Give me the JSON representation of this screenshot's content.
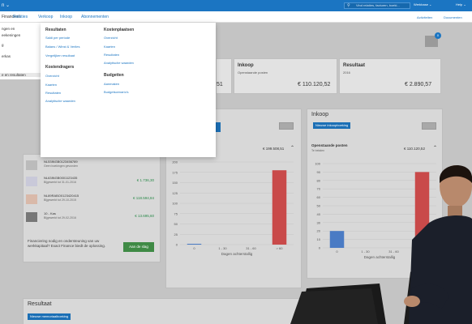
{
  "topbar": {
    "brand": "n ⌄",
    "search_placeholder": "Vind relaties, facturen, boeki...",
    "user": "Werkbase ⌄",
    "help": "Help ⌄"
  },
  "menubar": {
    "items": [
      "Financieel",
      "Relaties",
      "Verkoop",
      "Inkoop",
      "Abonnementen"
    ],
    "right": [
      "Activiteiten",
      "Documenten"
    ]
  },
  "leftmenu": {
    "items": [
      "ngen en",
      "eekeningen",
      "g",
      "erkas",
      "e en resultaten"
    ]
  },
  "dropdown": {
    "col1": {
      "heading1": "Resultaten",
      "links1": [
        "Saldi per periode",
        "Balans / Winst & Verlies",
        "Vergelijken resultaat"
      ],
      "heading2": "Kostendragers",
      "links2": [
        "Overzicht",
        "Kaarten",
        "Resultaten",
        "Analytische waarden"
      ]
    },
    "col2": {
      "heading1": "Kostenplaatsen",
      "links1": [
        "Overzicht",
        "Kaarten",
        "Resultaten",
        "Analytische waarden"
      ],
      "heading2": "Budgetten",
      "links2": [
        "Aanmaken",
        "Budgetscenario's"
      ]
    }
  },
  "notifications": {
    "count": "0"
  },
  "summary": {
    "mid_value": "51",
    "inkoop": {
      "title": "Inkoop",
      "subtitle": "Openstaande posten",
      "amount": "€ 110.120,52"
    },
    "resultaat": {
      "title": "Resultaat",
      "subtitle": "2016",
      "amount": "€ 2.890,57"
    }
  },
  "bank_panel": {
    "accounts": [
      {
        "name": "NL53INGB0123456789",
        "sub": "Geen boekingen gevonden",
        "value": ""
      },
      {
        "name": "NL63INGB0001123435",
        "sub": "Bijgewerkt tot 31-01-2016",
        "value": "€ 1.736,30"
      },
      {
        "name": "NL89RABO0123420415",
        "sub": "Bijgewerkt tot 29-10-2015",
        "value": "€ 118.594,84"
      },
      {
        "name": "10 - Kas",
        "sub": "Bijgewerkt tot 29-02-2016",
        "value": "€ 13.695,60"
      }
    ],
    "financing_text": "Financiering nodig en ondersteuning van uw werkkapitaal? Exact Finance biedt de oplossing.",
    "financing_button": "Aan de slag"
  },
  "mid_panel": {
    "value": "€ 199.508,51",
    "y_ticks": [
      "200",
      "175",
      "150",
      "125",
      "100",
      "75",
      "50",
      "25",
      "0"
    ],
    "x_ticks": [
      "0",
      "1 - 30",
      "31 - 60",
      "> 60"
    ],
    "x_label": "Dagen achterstallig"
  },
  "inkoop_panel": {
    "title": "Inkoop",
    "new_button": "Nieuwe inkoopboeking",
    "section_title": "Openstaande posten",
    "section_sub": "Te betalen",
    "value": "€ 110.120,52",
    "y_ticks": [
      "100",
      "90",
      "80",
      "70",
      "60",
      "50",
      "40",
      "30",
      "20",
      "10",
      "0"
    ],
    "x_ticks": [
      "0",
      "1 - 30",
      "31 - 60",
      "> 60"
    ],
    "x_label": "Dagen achterstallig"
  },
  "resultaat_panel": {
    "title": "Resultaat",
    "new_button": "Nieuwe memoriaalboeking"
  },
  "chart_data": [
    {
      "type": "bar",
      "categories": [
        "0",
        "1 - 30",
        "31 - 60",
        "> 60"
      ],
      "values": [
        2,
        0,
        0,
        180
      ],
      "xlabel": "Dagen achterstallig",
      "ylim": [
        0,
        200
      ],
      "colors": [
        "#4a7bc4",
        "#4a7bc4",
        "#4a7bc4",
        "#c94a4a"
      ]
    },
    {
      "type": "bar",
      "categories": [
        "0",
        "1 - 30",
        "31 - 60",
        "> 60"
      ],
      "values": [
        20,
        0,
        0,
        90
      ],
      "xlabel": "Dagen achterstallig",
      "ylim": [
        0,
        100
      ],
      "colors": [
        "#4a7bc4",
        "#4a7bc4",
        "#4a7bc4",
        "#c94a4a"
      ]
    }
  ]
}
